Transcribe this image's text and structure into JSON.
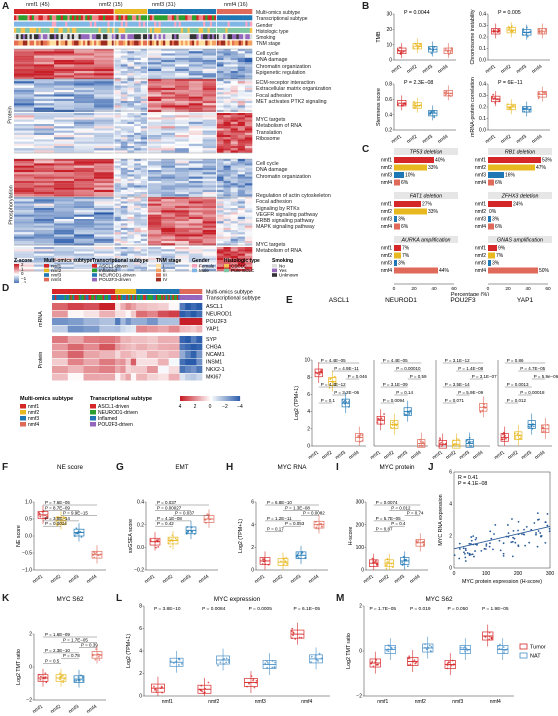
{
  "labels": [
    "A",
    "B",
    "C",
    "D",
    "E",
    "F",
    "G",
    "H",
    "I",
    "J",
    "K",
    "L",
    "M"
  ],
  "colors": {
    "nmf1": "#d62728",
    "nmf2": "#e8b820",
    "nmf3": "#1f77b4",
    "nmf4": "#e06a5a",
    "tumor": "#d62728",
    "nat": "#4a90c8"
  },
  "panelA": {
    "groups": [
      {
        "label": "nmf1 (45)"
      },
      {
        "label": "nmf2 (15)"
      },
      {
        "label": "nmf3 (31)"
      },
      {
        "label": "nmf4 (16)"
      }
    ],
    "tracks": [
      "Multi-omics subtype",
      "Transcriptional subtype",
      "Gender",
      "Histologic type",
      "Smoking",
      "TNM stage"
    ],
    "section_protein": "Protein",
    "section_phospho": "Phosphorylation",
    "protein_terms": [
      [
        "Cell cycle",
        "DNA damage",
        "Chromatin organization",
        "Epigenetic regulation"
      ],
      [
        "ECM-receptor interaction",
        "Extracellular matrix organization",
        "Focal adhesion",
        "MET activates PTK2 signaling"
      ],
      [
        "MYC targets",
        "Metabolism of RNA",
        "Translation",
        "Ribosome"
      ]
    ],
    "phospho_terms": [
      [
        "Cell cycle",
        "DNA damage",
        "Chromatin organization"
      ],
      [
        "Regulation of actin cytoskeleton",
        "Focal adhesion",
        "Signaling by RTKs",
        "VEGFR signaling pathway",
        "ERBB signaling pathway",
        "MAPK signaling pathway"
      ],
      [
        "MYC targets",
        "Metabolism of RNA"
      ]
    ],
    "legend": {
      "zscore": {
        "title": "Z-score",
        "ticks": [
          "2",
          "1",
          "0",
          "−1",
          "−2"
        ]
      },
      "multi": {
        "title": "Multi-omics subtype",
        "items": [
          "nmf1",
          "nmf2",
          "nmf3",
          "nmf4"
        ]
      },
      "trans": {
        "title": "Transcriptional subtype",
        "items": [
          "ASCL1-driven",
          "Inflamed",
          "NEUROD1-driven",
          "POU2F3-driven"
        ]
      },
      "tnm": {
        "title": "TNM stage",
        "items": [
          "I",
          "II",
          "III",
          "IV"
        ]
      },
      "gender": {
        "title": "Gender",
        "items": [
          "Female",
          "Male"
        ]
      },
      "hist": {
        "title": "Histologic type",
        "items": [
          "CSCLC",
          "Pure SCLC"
        ]
      },
      "smoking": {
        "title": "Smoking",
        "items": [
          "No",
          "Yes",
          "Unknown"
        ]
      }
    }
  },
  "panelB": [
    {
      "ylabel": "TMB",
      "p": "P = 0.0044",
      "ylim": [
        0,
        30
      ],
      "ticks": [
        "0",
        "10",
        "20",
        "30"
      ],
      "medians": [
        6,
        9,
        7,
        6
      ]
    },
    {
      "ylabel": "Chromosome instability",
      "p": "P = 0.005",
      "ylim": [
        0,
        0.4
      ],
      "ticks": [
        "0.0",
        "0.1",
        "0.2",
        "0.3",
        "0.4"
      ],
      "medians": [
        0.25,
        0.26,
        0.24,
        0.25
      ]
    },
    {
      "ylabel": "Stemness score",
      "p": "P = 2.3E−08",
      "ylim": [
        0.2,
        0.8
      ],
      "ticks": [
        "0.2",
        "0.4",
        "0.6",
        "0.8"
      ],
      "medians": [
        0.55,
        0.52,
        0.42,
        0.68
      ]
    },
    {
      "ylabel": "mRNA-protein correlation",
      "p": "P = 6E−11",
      "ylim": [
        0,
        0.4
      ],
      "ticks": [
        "0.0",
        "0.1",
        "0.2",
        "0.3",
        "0.4"
      ],
      "medians": [
        0.27,
        0.2,
        0.18,
        0.31
      ]
    }
  ],
  "panelBx": [
    "nmf1",
    "nmf2",
    "nmf3",
    "nmf4"
  ],
  "panelC": {
    "xlabel": "Percentage (%)",
    "blocks": [
      {
        "title": "TP53 deletion",
        "values": [
          40,
          33,
          10,
          6
        ],
        "labels": [
          "40%",
          "33%",
          "10%",
          "6%"
        ]
      },
      {
        "title": "RB1 deletion",
        "values": [
          53,
          47,
          16,
          6
        ],
        "labels": [
          "53%",
          "47%",
          "16%",
          "6%"
        ]
      },
      {
        "title": "FAT1 deletion",
        "values": [
          27,
          33,
          3,
          6
        ],
        "labels": [
          "27%",
          "33%",
          "3%",
          "6%"
        ]
      },
      {
        "title": "ZFHX3 deletion",
        "values": [
          24,
          0,
          3,
          6
        ],
        "labels": [
          "24%",
          "0%",
          "3%",
          "6%"
        ]
      },
      {
        "title": "AURKA amplification",
        "values": [
          7,
          7,
          3,
          44
        ],
        "labels": [
          "7%",
          "7%",
          "3%",
          "44%"
        ]
      },
      {
        "title": "GNAS amplification",
        "values": [
          9,
          7,
          3,
          50
        ],
        "labels": [
          "9%",
          "7%",
          "3%",
          "50%"
        ]
      }
    ],
    "rows": [
      "nmf1",
      "nmf2",
      "nmf3",
      "nmf4"
    ],
    "ticks": [
      "0",
      "20",
      "40",
      "60",
      "0",
      "20",
      "40",
      "60"
    ]
  },
  "panelD": {
    "tracks": [
      "Multi-omics subtype",
      "Transcriptional subtype"
    ],
    "mrna_label": "mRNA",
    "protein_label": "Protein",
    "mrna_genes": [
      "ASCL1",
      "NEUROD1",
      "POU2F3",
      "YAP1"
    ],
    "protein_genes": [
      "SYP",
      "CHGA",
      "NCAM1",
      "INSM1",
      "NKX2-1",
      "MKI67"
    ],
    "legend_multi": {
      "title": "Multi-omics subtype",
      "items": [
        "nmf1",
        "nmf2",
        "nmf3",
        "nmf4"
      ]
    },
    "legend_trans": {
      "title": "Transcriptional subtype",
      "items": [
        "ASCL1-driven",
        "NEUROD1-driven",
        "Inflamed",
        "POU2F3-driven"
      ]
    },
    "scale": [
      "4",
      "2",
      "0",
      "−2",
      "−4"
    ]
  },
  "panelE": {
    "ylabel": "Log2 (TPM+1)",
    "genes": [
      {
        "title": "ASCL1",
        "pvals": [
          "P = 4.4E−05",
          "P = 4.9E−11",
          "P = 0.046",
          "P = 4.4E−12",
          "P = 3.2E−06",
          "P = 0.1"
        ],
        "medians": [
          8.5,
          7.5,
          5,
          1
        ]
      },
      {
        "title": "NEUROD1",
        "pvals": [
          "P = 4.4E−05",
          "P = 0.00010",
          "P = 0.59",
          "P = 3.1E−09",
          "P = 0.14",
          "P = 0.0094"
        ],
        "medians": [
          3,
          2.5,
          4,
          0.3
        ]
      },
      {
        "title": "POU2F3",
        "pvals": [
          "P = 3.1E−12",
          "P = 1.4E−08",
          "P = 3.1E−07",
          "P = 3.5E−14",
          "P = 5.9E−09",
          "P = 0.071"
        ],
        "medians": [
          0.2,
          0.2,
          0.3,
          4.5
        ]
      },
      {
        "title": "YAP1",
        "pvals": [
          "P = 0.86",
          "P = 4.7E−05",
          "P = 5.9e−06",
          "P = 0.0013",
          "P = 0.00018",
          "P = 0.012"
        ],
        "medians": [
          1,
          1.2,
          2.5,
          2
        ]
      }
    ],
    "ticks": [
      "0",
      "2",
      "4",
      "6",
      "8",
      "10"
    ]
  },
  "panelF": {
    "title": "NE score",
    "ylabel": "NE score",
    "pvals": [
      "P = 7.6E−05",
      "P = 8.7E−09",
      "P = 9.9E−15",
      "P = 3.5E−14",
      "P = 0.0014"
    ],
    "medians": [
      0.62,
      0.45,
      0.1,
      -0.55
    ],
    "ylim": [
      -1,
      1
    ],
    "ticks": [
      "−1.0",
      "−0.5",
      "0.0",
      "0.5",
      "1.0"
    ]
  },
  "panelG": {
    "title": "EMT",
    "ylabel": "ssGSEA score",
    "pvals": [
      "P = 0.037",
      "P = 0.00027",
      "P = 0.037",
      "P = 4.1E−08",
      "P = 0.42"
    ],
    "medians": [
      0.05,
      0.06,
      0.15,
      0.25
    ],
    "ylim": [
      -0.2,
      0.4
    ],
    "ticks": [
      "−0.2",
      "0.0",
      "0.2",
      "0.4"
    ]
  },
  "panelH": {
    "title": "MYC RNA",
    "ylabel": "Log2 (TPM+1)",
    "pvals": [
      "P = 6.8E−10",
      "P = 1.3E−08",
      "P = 0.0082",
      "P = 1.2E−11",
      "P = 0.053",
      "P = 0.17"
    ],
    "medians": [
      0.8,
      0.7,
      1.3,
      4
    ],
    "ylim": [
      0,
      6
    ],
    "ticks": [
      "0",
      "2",
      "4",
      "6"
    ]
  },
  "panelI": {
    "title": "MYC protein",
    "ylabel": "H-score",
    "pvals": [
      "P = 0.0074",
      "P = 0.012",
      "P = 0.74",
      "P = 5.7E−05",
      "P = 0.4",
      "P = 0.87"
    ],
    "medians": [
      30,
      30,
      40,
      120
    ],
    "ylim": [
      0,
      300
    ],
    "ticks": [
      "0",
      "100",
      "200",
      "300"
    ]
  },
  "panelJ": {
    "R": "R = 0.41",
    "P": "P = 4.1E−08",
    "xlabel": "MYC protein expression (H-score)",
    "ylabel": "MYC RNA expression",
    "xticks": [
      "0",
      "100",
      "200",
      "300"
    ],
    "yticks": [
      "0",
      "2",
      "4",
      "6"
    ],
    "xlim": [
      0,
      300
    ],
    "ylim": [
      0,
      6
    ]
  },
  "panelK": {
    "title": "MYC S62",
    "ylabel": "Log2 TMT ratio",
    "pvals": [
      "P = 1.6E−09",
      "P = 1.7E−05",
      "P = 0.39",
      "P = 2.3E−10",
      "P = 0.78",
      "P = 0.5"
    ],
    "medians": [
      -1,
      -1,
      -1.1,
      1.1
    ],
    "ylim": [
      -3,
      3
    ],
    "ticks": [
      "−2",
      "0",
      "2"
    ]
  },
  "panelL": {
    "title": "MYC expression",
    "ylabel": "Log2 (TPM+1)",
    "pvals": [
      "P = 3.8E−10",
      "P = 0.0084",
      "P = 0.0005",
      "P = 6.1E−05"
    ],
    "tumor_medians": [
      0.7,
      0.6,
      1.2,
      5.5
    ],
    "nat_medians": [
      3,
      3.2,
      2.8,
      3.3
    ],
    "ylim": [
      0,
      8
    ],
    "ticks": [
      "0",
      "2",
      "4",
      "6",
      "8"
    ]
  },
  "panelM": {
    "title": "MYC S62",
    "ylabel": "Log2 TMT ratio",
    "pvals": [
      "P = 1.7E−05",
      "P = 0.019",
      "P = 0.050",
      "P = 1.9E−05"
    ],
    "tumor_medians": [
      -0.8,
      -0.7,
      -0.9,
      1
    ],
    "nat_medians": [
      0.1,
      0.2,
      0.1,
      0.1
    ],
    "ylim": [
      -3,
      3
    ],
    "ticks": [
      "−2",
      "0",
      "2"
    ],
    "legend": [
      "Tumor",
      "NAT"
    ]
  },
  "xcats": [
    "nmf1",
    "nmf2",
    "nmf3",
    "nmf4"
  ]
}
